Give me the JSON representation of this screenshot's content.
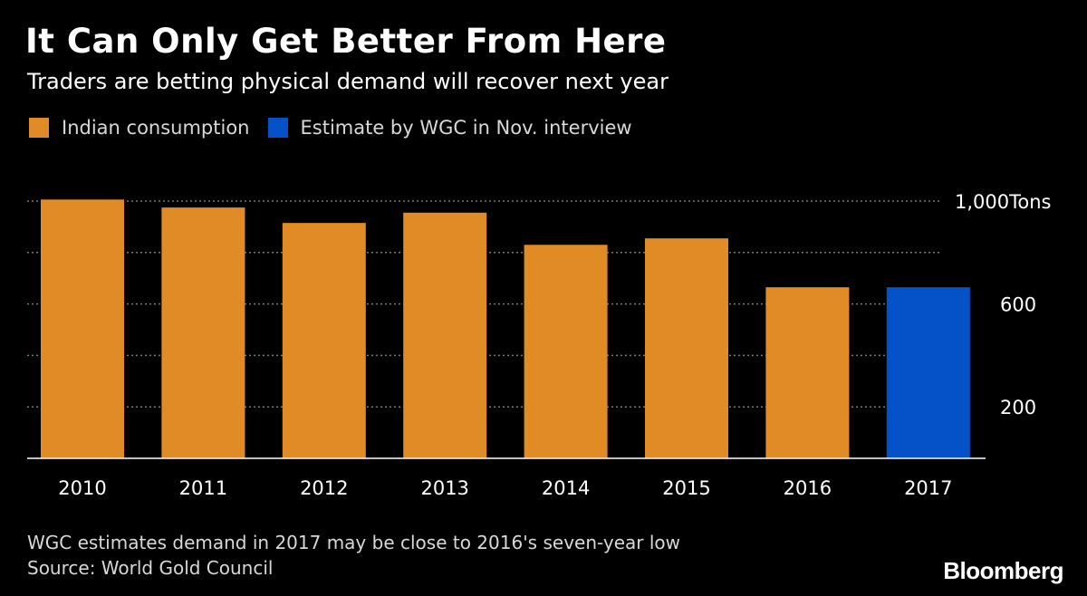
{
  "title": "It Can Only Get Better From Here",
  "subtitle": "Traders are betting physical demand will recover next year",
  "legend": [
    {
      "label": "Indian consumption",
      "color": "#E08B25"
    },
    {
      "label": "Estimate by WGC in Nov. interview",
      "color": "#0451C8"
    }
  ],
  "note": "WGC estimates demand in 2017 may be close to 2016's seven-year low",
  "source": "Source: World Gold Council",
  "brand": "Bloomberg",
  "chart_data": {
    "type": "bar",
    "categories": [
      "2010",
      "2011",
      "2012",
      "2013",
      "2014",
      "2015",
      "2016",
      "2017"
    ],
    "series": [
      {
        "name": "Indian consumption",
        "values": [
          1006,
          975,
          915,
          955,
          830,
          855,
          665,
          null
        ],
        "color": "#E08B25"
      },
      {
        "name": "Estimate by WGC in Nov. interview",
        "values": [
          null,
          null,
          null,
          null,
          null,
          null,
          null,
          665
        ],
        "color": "#0451C8"
      }
    ],
    "ylim": [
      0,
      1000
    ],
    "gridlines": [
      200,
      400,
      600,
      800,
      1000
    ],
    "yticks": [
      {
        "value": 1000,
        "label": "1,000Tons"
      },
      {
        "value": 600,
        "label": "600"
      },
      {
        "value": 200,
        "label": "200"
      }
    ],
    "axis_side": "right",
    "grid": true
  }
}
